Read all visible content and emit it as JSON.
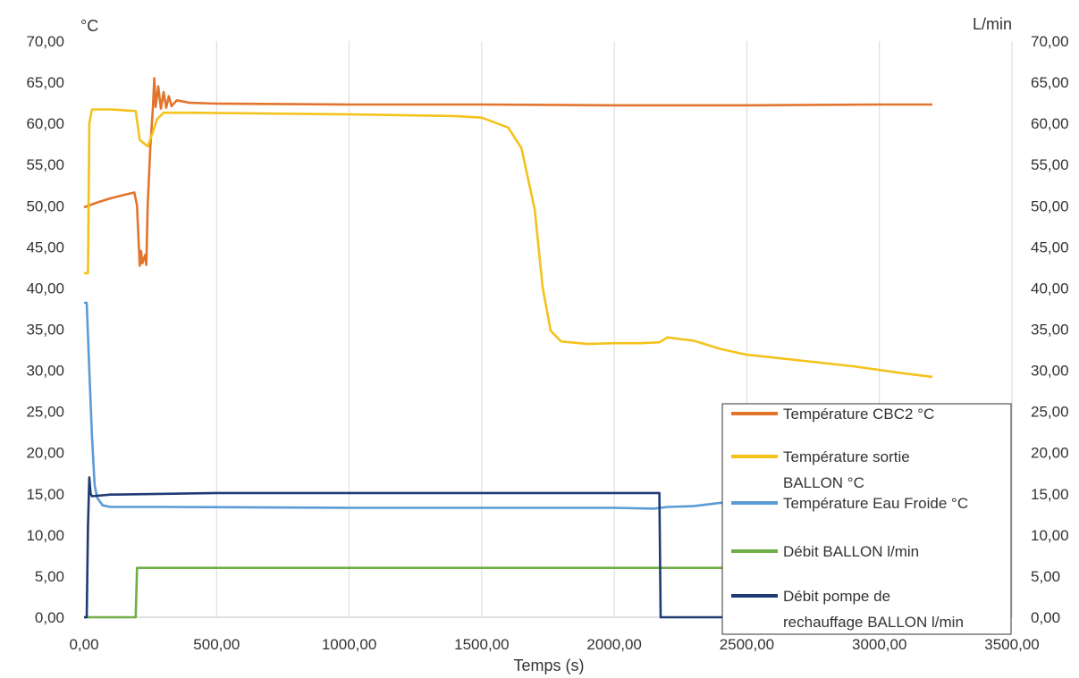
{
  "chart_data": {
    "type": "line",
    "title": "",
    "xlabel": "Temps (s)",
    "ylabel_left": "°C",
    "ylabel_right": "L/min",
    "xlim": [
      0,
      3500
    ],
    "ylim": [
      0,
      70
    ],
    "ylim_right": [
      0,
      70
    ],
    "x_ticks": [
      "0,00",
      "500,00",
      "1000,00",
      "1500,00",
      "2000,00",
      "2500,00",
      "3000,00",
      "3500,00"
    ],
    "y_ticks_left": [
      "0,00",
      "5,00",
      "10,00",
      "15,00",
      "20,00",
      "25,00",
      "30,00",
      "35,00",
      "40,00",
      "45,00",
      "50,00",
      "55,00",
      "60,00",
      "65,00",
      "70,00"
    ],
    "y_ticks_right": [
      "0,00",
      "5,00",
      "10,00",
      "15,00",
      "20,00",
      "25,00",
      "30,00",
      "35,00",
      "40,00",
      "45,00",
      "50,00",
      "55,00",
      "60,00",
      "65,00",
      "70,00"
    ],
    "grid": "vertical",
    "legend_position": "bottom-right",
    "series": [
      {
        "name": "Température CBC2 °C",
        "color": "#e2742d",
        "axis": "left",
        "points": [
          [
            0,
            49.8
          ],
          [
            50,
            50.4
          ],
          [
            100,
            50.9
          ],
          [
            150,
            51.3
          ],
          [
            190,
            51.6
          ],
          [
            200,
            50
          ],
          [
            210,
            42.7
          ],
          [
            215,
            44.5
          ],
          [
            220,
            43
          ],
          [
            230,
            44
          ],
          [
            235,
            42.8
          ],
          [
            240,
            50
          ],
          [
            250,
            57
          ],
          [
            260,
            62
          ],
          [
            265,
            65.5
          ],
          [
            270,
            62
          ],
          [
            280,
            64.5
          ],
          [
            290,
            61.8
          ],
          [
            300,
            63.8
          ],
          [
            310,
            61.9
          ],
          [
            320,
            63.3
          ],
          [
            330,
            62.1
          ],
          [
            350,
            62.8
          ],
          [
            400,
            62.5
          ],
          [
            500,
            62.4
          ],
          [
            1000,
            62.3
          ],
          [
            1500,
            62.3
          ],
          [
            2000,
            62.2
          ],
          [
            2500,
            62.2
          ],
          [
            3000,
            62.3
          ],
          [
            3200,
            62.3
          ]
        ]
      },
      {
        "name": "Température sortie BALLON °C",
        "color": "#f4c21a",
        "axis": "left",
        "points": [
          [
            0,
            41.8
          ],
          [
            15,
            41.8
          ],
          [
            20,
            60
          ],
          [
            30,
            61.7
          ],
          [
            100,
            61.7
          ],
          [
            195,
            61.5
          ],
          [
            210,
            58
          ],
          [
            240,
            57.2
          ],
          [
            260,
            59
          ],
          [
            275,
            60.5
          ],
          [
            300,
            61.3
          ],
          [
            400,
            61.3
          ],
          [
            1000,
            61.1
          ],
          [
            1400,
            60.9
          ],
          [
            1500,
            60.7
          ],
          [
            1600,
            59.5
          ],
          [
            1650,
            57
          ],
          [
            1700,
            49.5
          ],
          [
            1730,
            40
          ],
          [
            1760,
            34.8
          ],
          [
            1800,
            33.5
          ],
          [
            1900,
            33.2
          ],
          [
            2000,
            33.3
          ],
          [
            2100,
            33.3
          ],
          [
            2170,
            33.4
          ],
          [
            2200,
            34
          ],
          [
            2300,
            33.6
          ],
          [
            2400,
            32.6
          ],
          [
            2500,
            31.9
          ],
          [
            2700,
            31.2
          ],
          [
            2900,
            30.5
          ],
          [
            3100,
            29.6
          ],
          [
            3200,
            29.2
          ]
        ]
      },
      {
        "name": "Température Eau Froide °C",
        "color": "#5b9bd5",
        "axis": "left",
        "points": [
          [
            0,
            38.2
          ],
          [
            10,
            38.2
          ],
          [
            20,
            30
          ],
          [
            30,
            22
          ],
          [
            40,
            16
          ],
          [
            50,
            14.5
          ],
          [
            70,
            13.6
          ],
          [
            100,
            13.4
          ],
          [
            300,
            13.4
          ],
          [
            1000,
            13.3
          ],
          [
            1500,
            13.3
          ],
          [
            2000,
            13.3
          ],
          [
            2150,
            13.2
          ],
          [
            2200,
            13.4
          ],
          [
            2300,
            13.5
          ],
          [
            2400,
            13.9
          ],
          [
            2480,
            14
          ]
        ]
      },
      {
        "name": "Débit BALLON l/min",
        "color": "#70ad47",
        "axis": "right",
        "points": [
          [
            0,
            0
          ],
          [
            195,
            0
          ],
          [
            200,
            6
          ],
          [
            500,
            6
          ],
          [
            1000,
            6
          ],
          [
            1500,
            6
          ],
          [
            2000,
            6
          ],
          [
            2200,
            6
          ],
          [
            2480,
            6
          ]
        ]
      },
      {
        "name": "Débit pompe de rechauffage BALLON l/min",
        "color": "#1f3b73",
        "axis": "right",
        "points": [
          [
            0,
            0
          ],
          [
            10,
            0
          ],
          [
            15,
            11
          ],
          [
            20,
            17
          ],
          [
            25,
            15
          ],
          [
            30,
            14.7
          ],
          [
            100,
            14.9
          ],
          [
            500,
            15.1
          ],
          [
            1000,
            15.1
          ],
          [
            1500,
            15.1
          ],
          [
            2000,
            15.1
          ],
          [
            2170,
            15.1
          ],
          [
            2175,
            0
          ],
          [
            2480,
            0
          ]
        ]
      }
    ],
    "legend": [
      {
        "label_lines": [
          "Température CBC2 °C"
        ]
      },
      {
        "label_lines": [
          "Température sortie",
          "BALLON °C"
        ]
      },
      {
        "label_lines": [
          "Température Eau Froide °C"
        ]
      },
      {
        "label_lines": [
          "Débit BALLON l/min"
        ]
      },
      {
        "label_lines": [
          "Débit pompe de",
          "rechauffage BALLON l/min"
        ]
      }
    ]
  }
}
